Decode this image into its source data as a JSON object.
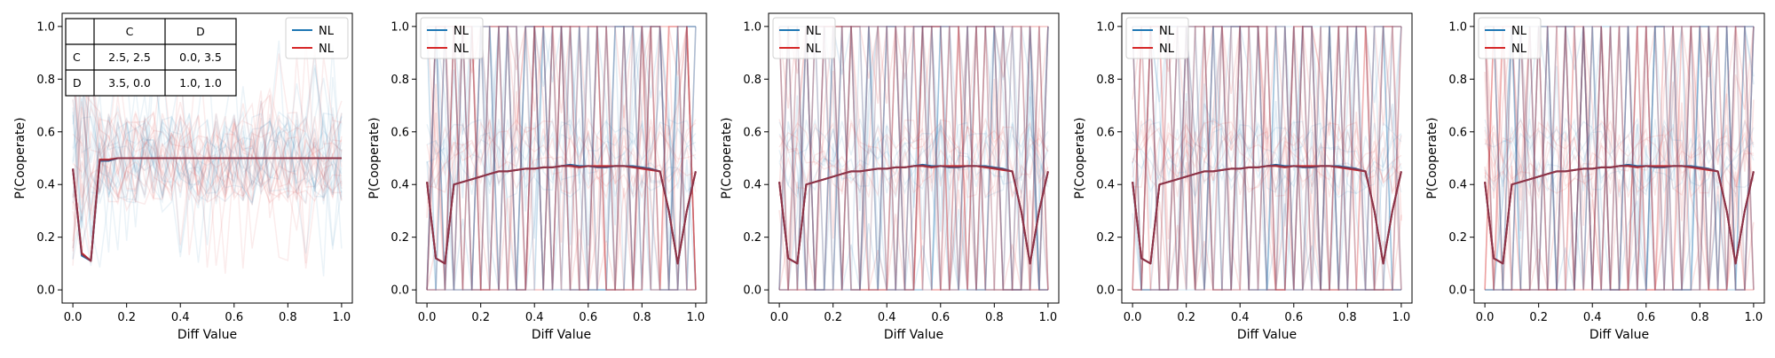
{
  "colors": {
    "nl_blue": "#1f77b4",
    "nl_red": "#d62728",
    "overlay": "#8c3448",
    "frame": "#000000"
  },
  "chart_data": [
    {
      "type": "line",
      "title": "",
      "xlabel": "Diff Value",
      "ylabel": "P(Cooperate)",
      "xlim": [
        -0.04,
        1.04
      ],
      "ylim": [
        -0.05,
        1.05
      ],
      "xticks": [
        "0.0",
        "0.2",
        "0.4",
        "0.6",
        "0.8",
        "1.0"
      ],
      "yticks": [
        "0.0",
        "0.2",
        "0.4",
        "0.6",
        "0.8",
        "1.0"
      ],
      "grid": false,
      "legend": {
        "position": "top-right",
        "entries": [
          {
            "label": "NL",
            "color": "#1f77b4"
          },
          {
            "label": "NL",
            "color": "#d62728"
          }
        ]
      },
      "payoff_table": {
        "col_headers": [
          "",
          "C",
          "D"
        ],
        "rows": [
          [
            "C",
            "2.5, 2.5",
            "0.0, 3.5"
          ],
          [
            "D",
            "3.5, 0.0",
            "1.0, 1.0"
          ]
        ]
      },
      "background_style": "noisy",
      "x": [
        0.0,
        0.033,
        0.067,
        0.1,
        0.133,
        0.167,
        0.2,
        0.233,
        0.267,
        0.3,
        0.333,
        0.367,
        0.4,
        0.433,
        0.467,
        0.5,
        0.533,
        0.567,
        0.6,
        0.633,
        0.667,
        0.7,
        0.733,
        0.767,
        0.8,
        0.833,
        0.867,
        0.9,
        0.933,
        0.967,
        1.0
      ],
      "series": [
        {
          "name": "NL",
          "color": "#1f77b4",
          "values": [
            0.46,
            0.13,
            0.11,
            0.49,
            0.49,
            0.5,
            0.5,
            0.5,
            0.5,
            0.5,
            0.5,
            0.5,
            0.5,
            0.5,
            0.5,
            0.5,
            0.5,
            0.5,
            0.5,
            0.5,
            0.5,
            0.5,
            0.5,
            0.5,
            0.5,
            0.5,
            0.5,
            0.5,
            0.5,
            0.5,
            0.5
          ]
        },
        {
          "name": "NL",
          "color": "#d62728",
          "values": [
            0.46,
            0.14,
            0.11,
            0.495,
            0.495,
            0.5,
            0.5,
            0.5,
            0.5,
            0.5,
            0.5,
            0.5,
            0.5,
            0.5,
            0.5,
            0.5,
            0.5,
            0.5,
            0.5,
            0.5,
            0.5,
            0.5,
            0.5,
            0.5,
            0.5,
            0.5,
            0.5,
            0.5,
            0.5,
            0.5,
            0.5
          ]
        }
      ]
    },
    {
      "type": "line",
      "title": "",
      "xlabel": "Diff Value",
      "ylabel": "P(Cooperate)",
      "xlim": [
        -0.04,
        1.04
      ],
      "ylim": [
        -0.05,
        1.05
      ],
      "xticks": [
        "0.0",
        "0.2",
        "0.4",
        "0.6",
        "0.8",
        "1.0"
      ],
      "yticks": [
        "0.0",
        "0.2",
        "0.4",
        "0.6",
        "0.8",
        "1.0"
      ],
      "grid": false,
      "legend": {
        "position": "top-left",
        "entries": [
          {
            "label": "NL",
            "color": "#1f77b4"
          },
          {
            "label": "NL",
            "color": "#d62728"
          }
        ]
      },
      "background_style": "binary",
      "x": [
        0.0,
        0.033,
        0.067,
        0.1,
        0.133,
        0.167,
        0.2,
        0.233,
        0.267,
        0.3,
        0.333,
        0.367,
        0.4,
        0.433,
        0.467,
        0.5,
        0.533,
        0.567,
        0.6,
        0.633,
        0.667,
        0.7,
        0.733,
        0.767,
        0.8,
        0.833,
        0.867,
        0.9,
        0.933,
        0.967,
        1.0
      ],
      "series": [
        {
          "name": "NL",
          "color": "#1f77b4",
          "values": [
            0.41,
            0.12,
            0.1,
            0.4,
            0.41,
            0.42,
            0.43,
            0.44,
            0.45,
            0.45,
            0.455,
            0.46,
            0.46,
            0.465,
            0.465,
            0.47,
            0.475,
            0.47,
            0.47,
            0.465,
            0.465,
            0.47,
            0.47,
            0.47,
            0.465,
            0.46,
            0.45,
            0.3,
            0.1,
            0.3,
            0.45
          ]
        },
        {
          "name": "NL",
          "color": "#d62728",
          "values": [
            0.41,
            0.12,
            0.1,
            0.4,
            0.41,
            0.42,
            0.43,
            0.44,
            0.45,
            0.45,
            0.455,
            0.46,
            0.46,
            0.465,
            0.465,
            0.47,
            0.47,
            0.465,
            0.47,
            0.47,
            0.47,
            0.47,
            0.47,
            0.465,
            0.46,
            0.455,
            0.45,
            0.3,
            0.1,
            0.3,
            0.45
          ]
        }
      ]
    },
    {
      "type": "line",
      "title": "",
      "xlabel": "Diff Value",
      "ylabel": "P(Cooperate)",
      "xlim": [
        -0.04,
        1.04
      ],
      "ylim": [
        -0.05,
        1.05
      ],
      "xticks": [
        "0.0",
        "0.2",
        "0.4",
        "0.6",
        "0.8",
        "1.0"
      ],
      "yticks": [
        "0.0",
        "0.2",
        "0.4",
        "0.6",
        "0.8",
        "1.0"
      ],
      "grid": false,
      "legend": {
        "position": "top-left",
        "entries": [
          {
            "label": "NL",
            "color": "#1f77b4"
          },
          {
            "label": "NL",
            "color": "#d62728"
          }
        ]
      },
      "background_style": "binary",
      "x": [
        0.0,
        0.033,
        0.067,
        0.1,
        0.133,
        0.167,
        0.2,
        0.233,
        0.267,
        0.3,
        0.333,
        0.367,
        0.4,
        0.433,
        0.467,
        0.5,
        0.533,
        0.567,
        0.6,
        0.633,
        0.667,
        0.7,
        0.733,
        0.767,
        0.8,
        0.833,
        0.867,
        0.9,
        0.933,
        0.967,
        1.0
      ],
      "series": [
        {
          "name": "NL",
          "color": "#1f77b4",
          "values": [
            0.41,
            0.12,
            0.1,
            0.4,
            0.41,
            0.42,
            0.43,
            0.44,
            0.45,
            0.45,
            0.455,
            0.46,
            0.46,
            0.465,
            0.465,
            0.47,
            0.475,
            0.47,
            0.47,
            0.465,
            0.465,
            0.47,
            0.47,
            0.47,
            0.465,
            0.46,
            0.45,
            0.3,
            0.1,
            0.3,
            0.45
          ]
        },
        {
          "name": "NL",
          "color": "#d62728",
          "values": [
            0.41,
            0.12,
            0.1,
            0.4,
            0.41,
            0.42,
            0.43,
            0.44,
            0.45,
            0.45,
            0.455,
            0.46,
            0.46,
            0.465,
            0.465,
            0.47,
            0.47,
            0.465,
            0.47,
            0.47,
            0.47,
            0.47,
            0.47,
            0.465,
            0.46,
            0.455,
            0.45,
            0.3,
            0.1,
            0.3,
            0.45
          ]
        }
      ]
    },
    {
      "type": "line",
      "title": "",
      "xlabel": "Diff Value",
      "ylabel": "P(Cooperate)",
      "xlim": [
        -0.04,
        1.04
      ],
      "ylim": [
        -0.05,
        1.05
      ],
      "xticks": [
        "0.0",
        "0.2",
        "0.4",
        "0.6",
        "0.8",
        "1.0"
      ],
      "yticks": [
        "0.0",
        "0.2",
        "0.4",
        "0.6",
        "0.8",
        "1.0"
      ],
      "grid": false,
      "legend": {
        "position": "top-left",
        "entries": [
          {
            "label": "NL",
            "color": "#1f77b4"
          },
          {
            "label": "NL",
            "color": "#d62728"
          }
        ]
      },
      "background_style": "binary",
      "x": [
        0.0,
        0.033,
        0.067,
        0.1,
        0.133,
        0.167,
        0.2,
        0.233,
        0.267,
        0.3,
        0.333,
        0.367,
        0.4,
        0.433,
        0.467,
        0.5,
        0.533,
        0.567,
        0.6,
        0.633,
        0.667,
        0.7,
        0.733,
        0.767,
        0.8,
        0.833,
        0.867,
        0.9,
        0.933,
        0.967,
        1.0
      ],
      "series": [
        {
          "name": "NL",
          "color": "#1f77b4",
          "values": [
            0.41,
            0.12,
            0.1,
            0.4,
            0.41,
            0.42,
            0.43,
            0.44,
            0.45,
            0.45,
            0.455,
            0.46,
            0.46,
            0.465,
            0.465,
            0.47,
            0.475,
            0.47,
            0.47,
            0.465,
            0.465,
            0.47,
            0.47,
            0.47,
            0.465,
            0.46,
            0.45,
            0.3,
            0.1,
            0.3,
            0.45
          ]
        },
        {
          "name": "NL",
          "color": "#d62728",
          "values": [
            0.41,
            0.12,
            0.1,
            0.4,
            0.41,
            0.42,
            0.43,
            0.44,
            0.45,
            0.45,
            0.455,
            0.46,
            0.46,
            0.465,
            0.465,
            0.47,
            0.47,
            0.465,
            0.47,
            0.47,
            0.47,
            0.47,
            0.47,
            0.465,
            0.46,
            0.455,
            0.45,
            0.3,
            0.1,
            0.3,
            0.45
          ]
        }
      ]
    },
    {
      "type": "line",
      "title": "",
      "xlabel": "Diff Value",
      "ylabel": "P(Cooperate)",
      "xlim": [
        -0.04,
        1.04
      ],
      "ylim": [
        -0.05,
        1.05
      ],
      "xticks": [
        "0.0",
        "0.2",
        "0.4",
        "0.6",
        "0.8",
        "1.0"
      ],
      "yticks": [
        "0.0",
        "0.2",
        "0.4",
        "0.6",
        "0.8",
        "1.0"
      ],
      "grid": false,
      "legend": {
        "position": "top-left",
        "entries": [
          {
            "label": "NL",
            "color": "#1f77b4"
          },
          {
            "label": "NL",
            "color": "#d62728"
          }
        ]
      },
      "background_style": "binary",
      "x": [
        0.0,
        0.033,
        0.067,
        0.1,
        0.133,
        0.167,
        0.2,
        0.233,
        0.267,
        0.3,
        0.333,
        0.367,
        0.4,
        0.433,
        0.467,
        0.5,
        0.533,
        0.567,
        0.6,
        0.633,
        0.667,
        0.7,
        0.733,
        0.767,
        0.8,
        0.833,
        0.867,
        0.9,
        0.933,
        0.967,
        1.0
      ],
      "series": [
        {
          "name": "NL",
          "color": "#1f77b4",
          "values": [
            0.41,
            0.12,
            0.1,
            0.4,
            0.41,
            0.42,
            0.43,
            0.44,
            0.45,
            0.45,
            0.455,
            0.46,
            0.46,
            0.465,
            0.465,
            0.47,
            0.475,
            0.47,
            0.47,
            0.465,
            0.465,
            0.47,
            0.47,
            0.47,
            0.465,
            0.46,
            0.45,
            0.3,
            0.1,
            0.3,
            0.45
          ]
        },
        {
          "name": "NL",
          "color": "#d62728",
          "values": [
            0.41,
            0.12,
            0.1,
            0.4,
            0.41,
            0.42,
            0.43,
            0.44,
            0.45,
            0.45,
            0.455,
            0.46,
            0.46,
            0.465,
            0.465,
            0.47,
            0.47,
            0.465,
            0.47,
            0.47,
            0.47,
            0.47,
            0.47,
            0.465,
            0.46,
            0.455,
            0.45,
            0.3,
            0.1,
            0.3,
            0.45
          ]
        }
      ]
    }
  ]
}
